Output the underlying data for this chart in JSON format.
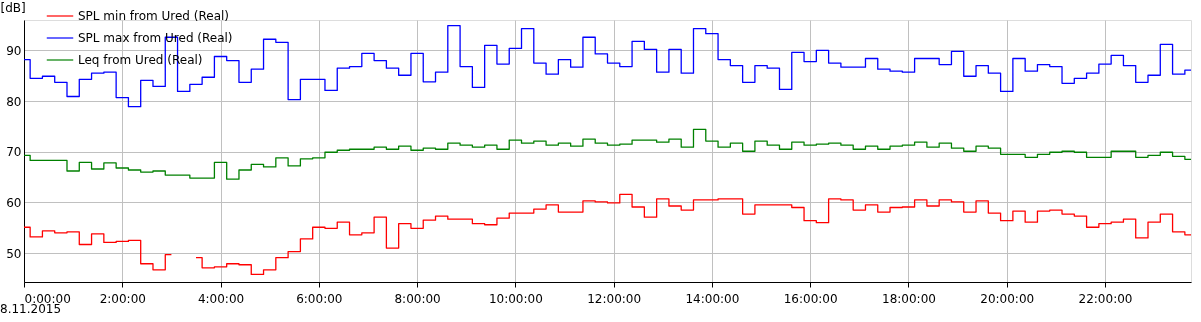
{
  "chart_data": {
    "type": "step",
    "ylabel": "[dB]",
    "annotations": [
      "8.11.2015"
    ],
    "x": [
      0,
      0.25,
      0.5,
      0.75,
      1,
      1.25,
      1.5,
      1.75,
      2,
      2.25,
      2.5,
      2.75,
      3,
      3.25,
      3.5,
      3.75,
      4,
      4.25,
      4.5,
      4.75,
      5,
      5.25,
      5.5,
      5.75,
      6,
      6.25,
      6.5,
      6.75,
      7,
      7.25,
      7.5,
      7.75,
      8,
      8.25,
      8.5,
      8.75,
      9,
      9.25,
      9.5,
      9.75,
      10,
      10.25,
      10.5,
      10.75,
      11,
      11.25,
      11.5,
      11.75,
      12,
      12.25,
      12.5,
      12.75,
      13,
      13.25,
      13.5,
      13.75,
      14,
      14.25,
      14.5,
      14.75,
      15,
      15.25,
      15.5,
      15.75,
      16,
      16.25,
      16.5,
      16.75,
      17,
      17.25,
      17.5,
      17.75,
      18,
      18.25,
      18.5,
      18.75,
      19,
      19.25,
      19.5,
      19.75,
      20,
      20.25,
      20.5,
      20.75,
      21,
      21.25,
      21.5,
      21.75,
      22,
      22.25,
      22.5,
      22.75,
      23,
      23.25,
      23.5,
      23.75
    ],
    "series": [
      {
        "name": "SPL min from Ured (Real)",
        "color": "#ff0000",
        "values": [
          55.1,
          53.2,
          54.4,
          54.0,
          54.2,
          51.7,
          53.8,
          52.1,
          52.3,
          52.5,
          47.9,
          46.7,
          49.7,
          null,
          49.1,
          47.1,
          47.3,
          47.9,
          47.7,
          45.8,
          46.7,
          49.1,
          50.3,
          52.8,
          55.1,
          54.9,
          56.1,
          53.6,
          54.0,
          57.1,
          51.0,
          55.8,
          54.9,
          56.5,
          57.3,
          56.7,
          56.7,
          55.8,
          55.6,
          56.9,
          57.9,
          57.9,
          58.7,
          59.5,
          58.1,
          58.1,
          60.3,
          60.1,
          59.9,
          61.6,
          59.1,
          57.1,
          60.7,
          59.3,
          58.5,
          60.5,
          60.5,
          60.7,
          60.7,
          57.7,
          59.5,
          59.5,
          59.5,
          59.0,
          56.4,
          56.0,
          60.7,
          60.5,
          58.5,
          59.5,
          58.1,
          59.0,
          59.1,
          60.5,
          59.3,
          60.5,
          60.1,
          58.1,
          60.3,
          57.9,
          56.4,
          58.3,
          56.1,
          58.3,
          58.5,
          57.7,
          57.3,
          55.1,
          55.8,
          56.1,
          56.7,
          53.0,
          56.1,
          57.7,
          54.2,
          53.6
        ]
      },
      {
        "name": "SPL max from Ured (Real)",
        "color": "#0000ff",
        "values": [
          88.2,
          84.5,
          84.9,
          83.7,
          80.9,
          84.3,
          85.5,
          85.7,
          80.7,
          78.9,
          84.1,
          82.9,
          92.6,
          81.9,
          83.3,
          84.7,
          88.8,
          88.0,
          83.7,
          86.3,
          92.2,
          91.6,
          80.3,
          84.3,
          84.3,
          82.1,
          86.5,
          86.8,
          89.4,
          88.0,
          86.5,
          85.1,
          89.4,
          83.8,
          85.7,
          94.9,
          86.8,
          82.7,
          91.0,
          87.3,
          90.4,
          94.3,
          87.5,
          85.3,
          88.2,
          86.7,
          92.6,
          89.3,
          87.5,
          86.8,
          91.8,
          90.2,
          85.7,
          90.2,
          85.5,
          94.3,
          93.3,
          88.2,
          87.0,
          83.7,
          87.0,
          86.5,
          82.3,
          89.6,
          87.8,
          90.0,
          87.5,
          86.7,
          86.7,
          88.4,
          86.3,
          85.9,
          85.7,
          88.4,
          88.4,
          87.2,
          89.8,
          84.9,
          87.0,
          85.5,
          81.9,
          88.4,
          85.9,
          87.2,
          86.8,
          83.5,
          84.5,
          85.5,
          87.3,
          89.0,
          87.0,
          83.7,
          85.1,
          91.2,
          85.3,
          86.1
        ]
      },
      {
        "name": "Leq from Ured (Real)",
        "color": "#008000",
        "values": [
          69.3,
          68.3,
          68.3,
          68.3,
          66.2,
          67.9,
          66.6,
          67.8,
          66.8,
          66.4,
          66.0,
          66.2,
          65.4,
          65.4,
          64.8,
          64.8,
          67.9,
          64.6,
          66.4,
          67.5,
          67.0,
          68.8,
          67.2,
          68.6,
          68.8,
          69.9,
          70.3,
          70.5,
          70.5,
          70.9,
          70.5,
          71.1,
          70.3,
          70.7,
          70.5,
          71.7,
          71.3,
          70.9,
          71.3,
          70.5,
          72.3,
          71.7,
          72.1,
          71.3,
          71.7,
          71.1,
          72.5,
          71.7,
          71.3,
          71.5,
          72.3,
          72.3,
          71.9,
          72.5,
          70.9,
          74.4,
          72.1,
          70.9,
          71.7,
          70.1,
          72.1,
          71.3,
          70.5,
          71.9,
          71.3,
          71.5,
          71.7,
          71.3,
          70.5,
          71.1,
          70.5,
          71.1,
          71.3,
          71.9,
          70.9,
          71.7,
          70.7,
          70.1,
          71.1,
          70.7,
          69.5,
          69.5,
          68.9,
          69.5,
          69.9,
          70.1,
          69.9,
          68.9,
          68.9,
          70.1,
          70.1,
          68.9,
          69.3,
          69.9,
          69.1,
          68.5
        ]
      }
    ],
    "xlim": [
      0,
      23.75
    ],
    "xticks": [
      {
        "value": 0,
        "label": "0:00:00"
      },
      {
        "value": 2,
        "label": "2:00:00"
      },
      {
        "value": 4,
        "label": "4:00:00"
      },
      {
        "value": 6,
        "label": "6:00:00"
      },
      {
        "value": 8,
        "label": "8:00:00"
      },
      {
        "value": 10,
        "label": "10:00:00"
      },
      {
        "value": 12,
        "label": "12:00:00"
      },
      {
        "value": 14,
        "label": "14:00:00"
      },
      {
        "value": 16,
        "label": "16:00:00"
      },
      {
        "value": 18,
        "label": "18:00:00"
      },
      {
        "value": 20,
        "label": "20:00:00"
      },
      {
        "value": 22,
        "label": "22:00:00"
      }
    ],
    "ylim": [
      44.3,
      96
    ],
    "yticks": [
      50,
      60,
      70,
      80,
      90
    ],
    "grid": true,
    "legend": "top left",
    "marker": "none",
    "line_style": "solid"
  }
}
